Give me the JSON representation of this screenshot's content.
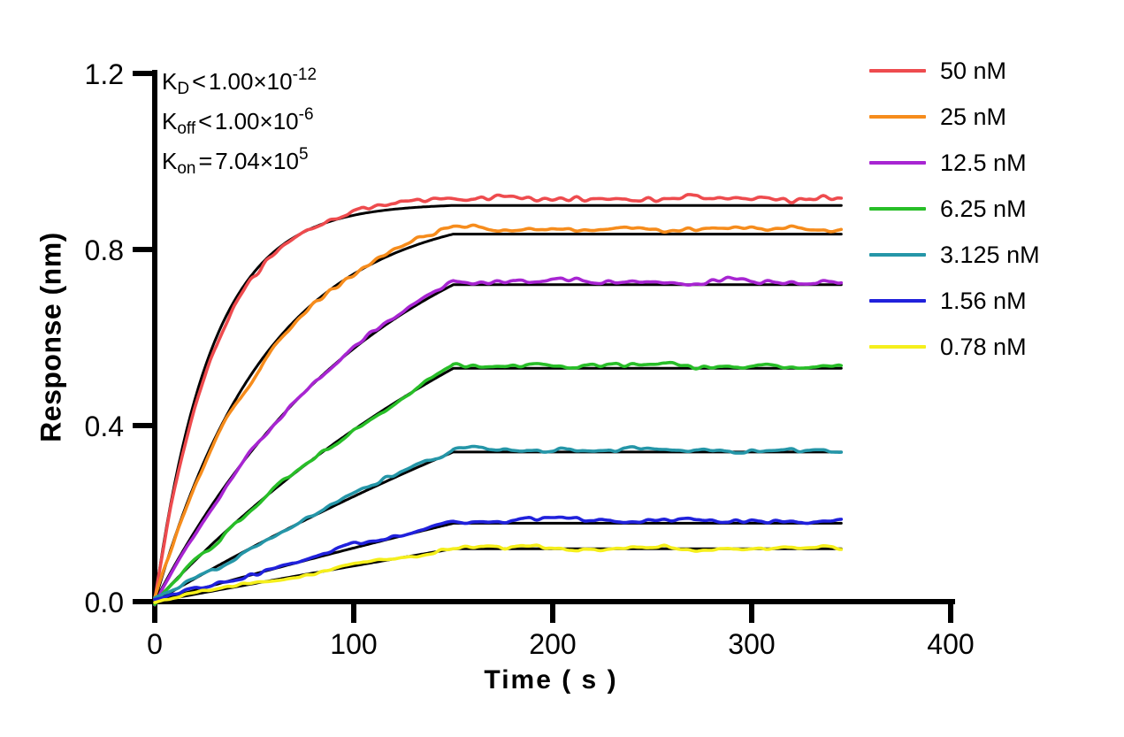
{
  "figure": {
    "background": "#FFFFFF",
    "text_color": "#000000"
  },
  "chart_data": {
    "type": "line",
    "title": "",
    "xlabel": "Time ( s )",
    "ylabel": "Response (nm)",
    "xlim": [
      0,
      400
    ],
    "ylim": [
      0,
      1.2
    ],
    "grid": false,
    "legend_position": "outside-right-top",
    "axis_color": "#000000",
    "fit_color": "#000000",
    "x_ticks": [
      {
        "value": 0,
        "label": "0"
      },
      {
        "value": 100,
        "label": "100"
      },
      {
        "value": 200,
        "label": "200"
      },
      {
        "value": 300,
        "label": "300"
      },
      {
        "value": 400,
        "label": "400"
      }
    ],
    "y_ticks": [
      {
        "value": 0.0,
        "label": "0.0"
      },
      {
        "value": 0.4,
        "label": "0.4"
      },
      {
        "value": 0.8,
        "label": "0.8"
      },
      {
        "value": 1.2,
        "label": "1.2"
      }
    ],
    "association_end_s": 150,
    "trace_end_s": 345,
    "kinetics": [
      {
        "base": "K",
        "sub": "D",
        "op": "<",
        "mant": "1.00×10",
        "sup": "-12"
      },
      {
        "base": "K",
        "sub": "off",
        "op": "<",
        "mant": "1.00×10",
        "sup": "-6"
      },
      {
        "base": "K",
        "sub": "on",
        "op": "=",
        "mant": "7.04×10",
        "sup": "5"
      }
    ],
    "series": [
      {
        "label": "50 nM",
        "color": "#EE4B4E",
        "plateau": 0.9,
        "kobs": 0.0352,
        "trace_offset": 0.016,
        "noise_amp": 0.01
      },
      {
        "label": "25 nM",
        "color": "#F68C1C",
        "plateau": 0.835,
        "kobs": 0.0176,
        "trace_offset": 0.01,
        "noise_amp": 0.008
      },
      {
        "label": "12.5 nM",
        "color": "#A825D2",
        "plateau": 0.72,
        "kobs": 0.0088,
        "trace_offset": 0.008,
        "noise_amp": 0.0075
      },
      {
        "label": "6.25 nM",
        "color": "#28BE28",
        "plateau": 0.53,
        "kobs": 0.0044,
        "trace_offset": 0.006,
        "noise_amp": 0.0075
      },
      {
        "label": "3.125 nM",
        "color": "#2596A8",
        "plateau": 0.34,
        "kobs": 0.0022,
        "trace_offset": 0.005,
        "noise_amp": 0.0075
      },
      {
        "label": "1.56 nM",
        "color": "#2021DC",
        "plateau": 0.178,
        "kobs": 0.0011,
        "trace_offset": 0.006,
        "noise_amp": 0.0075
      },
      {
        "label": "0.78 nM",
        "color": "#F5EF1C",
        "plateau": 0.12,
        "kobs": 0.00055,
        "trace_offset": 0.002,
        "noise_amp": 0.006
      }
    ]
  }
}
